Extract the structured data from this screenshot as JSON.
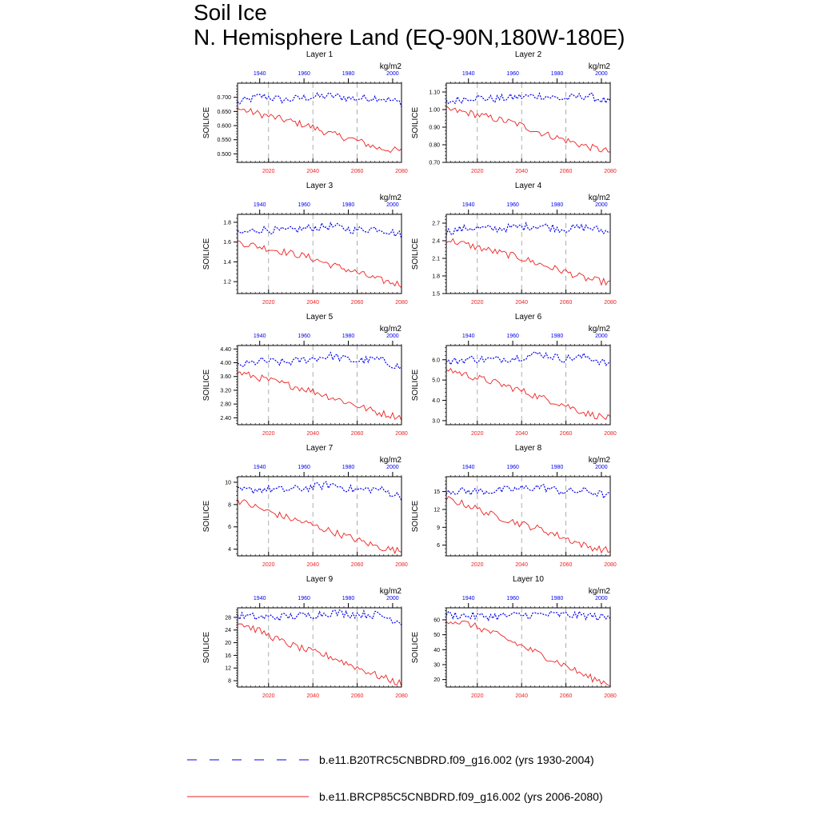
{
  "figure": {
    "title_line1": "Soil Ice",
    "title_line2": "N. Hemisphere Land (EQ-90N,180W-180E)"
  },
  "colors": {
    "historical": "#0000ee",
    "future": "#ee2222",
    "axis": "#000000",
    "grid": "#999999"
  },
  "legend": [
    {
      "label": "b.e11.B20TRC5CNBDRD.f09_g16.002 (yrs 1930-2004)",
      "color": "#0000ee",
      "style": "dashed"
    },
    {
      "label": "b.e11.BRCP85C5CNBDRD.f09_g16.002 (yrs 2006-2080)",
      "color": "#ee2222",
      "style": "solid"
    }
  ],
  "chart_data": [
    {
      "type": "line",
      "title": "Layer 1",
      "ylabel": "SOILICE",
      "units": "kg/m2",
      "ylim": [
        0.47,
        0.75
      ],
      "yticks": [
        0.5,
        0.55,
        0.6,
        0.65,
        0.7
      ],
      "ytick_labels": [
        "0.500",
        "0.550",
        "0.600",
        "0.650",
        "0.700"
      ],
      "x_bottom": {
        "range": [
          2006,
          2080
        ],
        "ticks": [
          2020,
          2040,
          2060,
          2080
        ],
        "labels": [
          "2020",
          "2040",
          "2060",
          "2080"
        ]
      },
      "x_top": {
        "range": [
          1930,
          2004
        ],
        "ticks": [
          1940,
          1960,
          1980,
          2000
        ],
        "labels": [
          "1940",
          "1960",
          "1980",
          "2000"
        ]
      },
      "series": [
        {
          "name": "b.e11.B20TRC5CNBDRD.f09_g16.002",
          "style": "dashed",
          "start": 1930,
          "anchors": [
            0.68,
            0.705,
            0.69,
            0.7,
            0.705,
            0.695,
            0.7,
            0.68
          ]
        },
        {
          "name": "b.e11.BRCP85C5CNBDRD.f09_g16.002",
          "style": "solid",
          "start": 2006,
          "anchors": [
            0.66,
            0.64,
            0.62,
            0.6,
            0.57,
            0.55,
            0.52,
            0.51
          ]
        }
      ]
    },
    {
      "type": "line",
      "title": "Layer 2",
      "ylabel": "SOILICE",
      "units": "kg/m2",
      "ylim": [
        0.7,
        1.15
      ],
      "yticks": [
        0.7,
        0.8,
        0.9,
        1.0,
        1.1
      ],
      "ytick_labels": [
        "0.70",
        "0.80",
        "0.90",
        "1.00",
        "1.10"
      ],
      "x_bottom": {
        "range": [
          2006,
          2080
        ],
        "ticks": [
          2020,
          2040,
          2060,
          2080
        ],
        "labels": [
          "2020",
          "2040",
          "2060",
          "2080"
        ]
      },
      "x_top": {
        "range": [
          1930,
          2004
        ],
        "ticks": [
          1940,
          1960,
          1980,
          2000
        ],
        "labels": [
          "1940",
          "1960",
          "1980",
          "2000"
        ]
      },
      "series": [
        {
          "name": "b.e11.B20TRC5CNBDRD.f09_g16.002",
          "style": "dashed",
          "start": 1930,
          "anchors": [
            1.04,
            1.07,
            1.06,
            1.07,
            1.08,
            1.06,
            1.08,
            1.04
          ]
        },
        {
          "name": "b.e11.BRCP85C5CNBDRD.f09_g16.002",
          "style": "solid",
          "start": 2006,
          "anchors": [
            1.0,
            0.98,
            0.95,
            0.92,
            0.87,
            0.83,
            0.79,
            0.76
          ]
        }
      ]
    },
    {
      "type": "line",
      "title": "Layer 3",
      "ylabel": "SOILICE",
      "units": "kg/m2",
      "ylim": [
        1.08,
        1.88
      ],
      "yticks": [
        1.2,
        1.4,
        1.6,
        1.8
      ],
      "ytick_labels": [
        "1.2",
        "1.4",
        "1.6",
        "1.8"
      ],
      "x_bottom": {
        "range": [
          2006,
          2080
        ],
        "ticks": [
          2020,
          2040,
          2060,
          2080
        ],
        "labels": [
          "2020",
          "2040",
          "2060",
          "2080"
        ]
      },
      "x_top": {
        "range": [
          1930,
          2004
        ],
        "ticks": [
          1940,
          1960,
          1980,
          2000
        ],
        "labels": [
          "1940",
          "1960",
          "1980",
          "2000"
        ]
      },
      "series": [
        {
          "name": "b.e11.B20TRC5CNBDRD.f09_g16.002",
          "style": "dashed",
          "start": 1930,
          "anchors": [
            1.68,
            1.73,
            1.71,
            1.74,
            1.76,
            1.72,
            1.74,
            1.67
          ]
        },
        {
          "name": "b.e11.BRCP85C5CNBDRD.f09_g16.002",
          "style": "solid",
          "start": 2006,
          "anchors": [
            1.6,
            1.55,
            1.5,
            1.45,
            1.37,
            1.3,
            1.22,
            1.17
          ]
        }
      ]
    },
    {
      "type": "line",
      "title": "Layer 4",
      "ylabel": "SOILICE",
      "units": "kg/m2",
      "ylim": [
        1.5,
        2.85
      ],
      "yticks": [
        1.5,
        1.8,
        2.1,
        2.4,
        2.7
      ],
      "ytick_labels": [
        "1.5",
        "1.8",
        "2.1",
        "2.4",
        "2.7"
      ],
      "x_bottom": {
        "range": [
          2006,
          2080
        ],
        "ticks": [
          2020,
          2040,
          2060,
          2080
        ],
        "labels": [
          "2020",
          "2040",
          "2060",
          "2080"
        ]
      },
      "x_top": {
        "range": [
          1930,
          2004
        ],
        "ticks": [
          1940,
          1960,
          1980,
          2000
        ],
        "labels": [
          "1940",
          "1960",
          "1980",
          "2000"
        ]
      },
      "series": [
        {
          "name": "b.e11.B20TRC5CNBDRD.f09_g16.002",
          "style": "dashed",
          "start": 1930,
          "anchors": [
            2.55,
            2.62,
            2.6,
            2.63,
            2.66,
            2.6,
            2.63,
            2.54
          ]
        },
        {
          "name": "b.e11.BRCP85C5CNBDRD.f09_g16.002",
          "style": "solid",
          "start": 2006,
          "anchors": [
            2.42,
            2.32,
            2.22,
            2.13,
            2.0,
            1.88,
            1.75,
            1.68
          ]
        }
      ]
    },
    {
      "type": "line",
      "title": "Layer 5",
      "ylabel": "SOILICE",
      "units": "kg/m2",
      "ylim": [
        2.2,
        4.5
      ],
      "yticks": [
        2.4,
        2.8,
        3.2,
        3.6,
        4.0,
        4.4
      ],
      "ytick_labels": [
        "2.40",
        "2.80",
        "3.20",
        "3.60",
        "4.00",
        "4.40"
      ],
      "x_bottom": {
        "range": [
          2006,
          2080
        ],
        "ticks": [
          2020,
          2040,
          2060,
          2080
        ],
        "labels": [
          "2020",
          "2040",
          "2060",
          "2080"
        ]
      },
      "x_top": {
        "range": [
          1930,
          2004
        ],
        "ticks": [
          1940,
          1960,
          1980,
          2000
        ],
        "labels": [
          "1940",
          "1960",
          "1980",
          "2000"
        ]
      },
      "series": [
        {
          "name": "b.e11.B20TRC5CNBDRD.f09_g16.002",
          "style": "dashed",
          "start": 1930,
          "anchors": [
            3.9,
            4.05,
            4.0,
            4.1,
            4.2,
            4.05,
            4.1,
            3.85
          ]
        },
        {
          "name": "b.e11.BRCP85C5CNBDRD.f09_g16.002",
          "style": "solid",
          "start": 2006,
          "anchors": [
            3.72,
            3.55,
            3.38,
            3.22,
            3.0,
            2.78,
            2.55,
            2.42
          ]
        }
      ]
    },
    {
      "type": "line",
      "title": "Layer 6",
      "ylabel": "SOILICE",
      "units": "kg/m2",
      "ylim": [
        2.8,
        6.7
      ],
      "yticks": [
        3.0,
        4.0,
        5.0,
        6.0
      ],
      "ytick_labels": [
        "3.0",
        "4.0",
        "5.0",
        "6.0"
      ],
      "x_bottom": {
        "range": [
          2006,
          2080
        ],
        "ticks": [
          2020,
          2040,
          2060,
          2080
        ],
        "labels": [
          "2020",
          "2040",
          "2060",
          "2080"
        ]
      },
      "x_top": {
        "range": [
          1930,
          2004
        ],
        "ticks": [
          1940,
          1960,
          1980,
          2000
        ],
        "labels": [
          "1940",
          "1960",
          "1980",
          "2000"
        ]
      },
      "series": [
        {
          "name": "b.e11.B20TRC5CNBDRD.f09_g16.002",
          "style": "dashed",
          "start": 1930,
          "anchors": [
            5.85,
            6.05,
            6.0,
            6.1,
            6.3,
            6.05,
            6.15,
            5.75
          ]
        },
        {
          "name": "b.e11.BRCP85C5CNBDRD.f09_g16.002",
          "style": "solid",
          "start": 2006,
          "anchors": [
            5.55,
            5.2,
            4.9,
            4.55,
            4.15,
            3.8,
            3.35,
            3.1
          ]
        }
      ]
    },
    {
      "type": "line",
      "title": "Layer 7",
      "ylabel": "SOILICE",
      "units": "kg/m2",
      "ylim": [
        3.4,
        10.5
      ],
      "yticks": [
        4,
        6,
        8,
        10
      ],
      "ytick_labels": [
        "4",
        "6",
        "8",
        "10"
      ],
      "x_bottom": {
        "range": [
          2006,
          2080
        ],
        "ticks": [
          2020,
          2040,
          2060,
          2080
        ],
        "labels": [
          "2020",
          "2040",
          "2060",
          "2080"
        ]
      },
      "x_top": {
        "range": [
          1930,
          2004
        ],
        "ticks": [
          1940,
          1960,
          1980,
          2000
        ],
        "labels": [
          "1940",
          "1960",
          "1980",
          "2000"
        ]
      },
      "series": [
        {
          "name": "b.e11.B20TRC5CNBDRD.f09_g16.002",
          "style": "dashed",
          "start": 1930,
          "anchors": [
            9.2,
            9.4,
            9.3,
            9.5,
            9.8,
            9.3,
            9.4,
            8.7
          ]
        },
        {
          "name": "b.e11.BRCP85C5CNBDRD.f09_g16.002",
          "style": "solid",
          "start": 2006,
          "anchors": [
            8.4,
            7.6,
            6.9,
            6.3,
            5.6,
            4.9,
            4.2,
            3.8
          ]
        }
      ]
    },
    {
      "type": "line",
      "title": "Layer 8",
      "ylabel": "SOILICE",
      "units": "kg/m2",
      "ylim": [
        4.2,
        17.5
      ],
      "yticks": [
        6,
        9,
        12,
        15
      ],
      "ytick_labels": [
        "6",
        "9",
        "12",
        "15"
      ],
      "x_bottom": {
        "range": [
          2006,
          2080
        ],
        "ticks": [
          2020,
          2040,
          2060,
          2080
        ],
        "labels": [
          "2020",
          "2040",
          "2060",
          "2080"
        ]
      },
      "x_top": {
        "range": [
          1930,
          2004
        ],
        "ticks": [
          1940,
          1960,
          1980,
          2000
        ],
        "labels": [
          "1940",
          "1960",
          "1980",
          "2000"
        ]
      },
      "series": [
        {
          "name": "b.e11.B20TRC5CNBDRD.f09_g16.002",
          "style": "dashed",
          "start": 1930,
          "anchors": [
            15.2,
            15.0,
            15.1,
            15.4,
            15.8,
            15.0,
            15.1,
            14.2
          ]
        },
        {
          "name": "b.e11.BRCP85C5CNBDRD.f09_g16.002",
          "style": "solid",
          "start": 2006,
          "anchors": [
            13.8,
            12.6,
            11.0,
            9.8,
            8.7,
            7.3,
            5.8,
            5.0
          ]
        }
      ]
    },
    {
      "type": "line",
      "title": "Layer 9",
      "ylabel": "SOILICE",
      "units": "kg/m2",
      "ylim": [
        6,
        31
      ],
      "yticks": [
        8,
        12,
        16,
        20,
        24,
        28
      ],
      "ytick_labels": [
        "8",
        "12",
        "16",
        "20",
        "24",
        "28"
      ],
      "x_bottom": {
        "range": [
          2006,
          2080
        ],
        "ticks": [
          2020,
          2040,
          2060,
          2080
        ],
        "labels": [
          "2020",
          "2040",
          "2060",
          "2080"
        ]
      },
      "x_top": {
        "range": [
          1930,
          2004
        ],
        "ticks": [
          1940,
          1960,
          1980,
          2000
        ],
        "labels": [
          "1940",
          "1960",
          "1980",
          "2000"
        ]
      },
      "series": [
        {
          "name": "b.e11.B20TRC5CNBDRD.f09_g16.002",
          "style": "dashed",
          "start": 1930,
          "anchors": [
            28.5,
            28.0,
            28.2,
            28.6,
            29.5,
            29.0,
            28.8,
            26.5
          ]
        },
        {
          "name": "b.e11.BRCP85C5CNBDRD.f09_g16.002",
          "style": "solid",
          "start": 2006,
          "anchors": [
            26.5,
            23.5,
            20.0,
            17.5,
            15.5,
            12.5,
            9.5,
            7.0
          ]
        }
      ]
    },
    {
      "type": "line",
      "title": "Layer 10",
      "ylabel": "SOILICE",
      "units": "kg/m2",
      "ylim": [
        15,
        68
      ],
      "yticks": [
        20,
        30,
        40,
        50,
        60
      ],
      "ytick_labels": [
        "20",
        "30",
        "40",
        "50",
        "60"
      ],
      "x_bottom": {
        "range": [
          2006,
          2080
        ],
        "ticks": [
          2020,
          2040,
          2060,
          2080
        ],
        "labels": [
          "2020",
          "2040",
          "2060",
          "2080"
        ]
      },
      "x_top": {
        "range": [
          1930,
          2004
        ],
        "ticks": [
          1940,
          1960,
          1980,
          2000
        ],
        "labels": [
          "1940",
          "1960",
          "1980",
          "2000"
        ]
      },
      "series": [
        {
          "name": "b.e11.B20TRC5CNBDRD.f09_g16.002",
          "style": "dashed",
          "start": 1930,
          "anchors": [
            63.5,
            62.5,
            62.3,
            63.0,
            63.5,
            63.3,
            62.8,
            61.0
          ]
        },
        {
          "name": "b.e11.BRCP85C5CNBDRD.f09_g16.002",
          "style": "solid",
          "start": 2006,
          "anchors": [
            60.0,
            57.0,
            51.0,
            44.0,
            37.0,
            30.0,
            22.0,
            17.0
          ]
        }
      ]
    }
  ]
}
